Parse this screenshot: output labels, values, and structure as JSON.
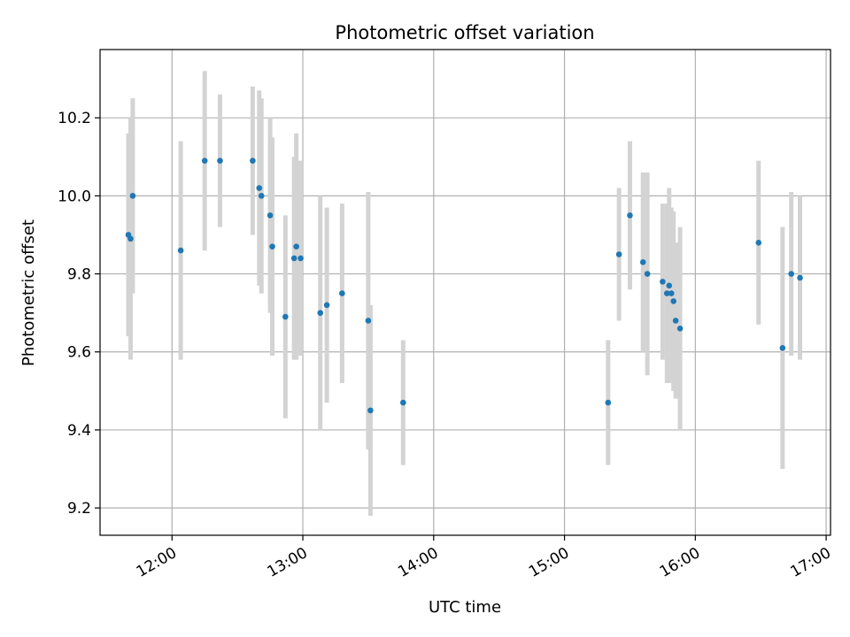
{
  "chart_data": {
    "type": "scatter",
    "title": "Photometric offset variation",
    "xlabel": "UTC time",
    "ylabel": "Photometric offset",
    "x_tick_labels": [
      "12:00",
      "13:00",
      "14:00",
      "15:00",
      "16:00",
      "17:00"
    ],
    "y_tick_labels": [
      "9.2",
      "9.4",
      "9.6",
      "9.8",
      "10.0",
      "10.2"
    ],
    "xlim": [
      "11:27",
      "17:02"
    ],
    "ylim": [
      9.13,
      10.375
    ],
    "grid": true,
    "point_color": "#1f77b4",
    "errorbar_color": "#d3d3d3",
    "series": [
      {
        "points": [
          {
            "x": "11:40",
            "y": 9.9,
            "yerr": 0.26
          },
          {
            "x": "11:41",
            "y": 9.89,
            "yerr": 0.31
          },
          {
            "x": "11:42",
            "y": 10.0,
            "yerr": 0.25
          },
          {
            "x": "12:04",
            "y": 9.86,
            "yerr": 0.28
          },
          {
            "x": "12:15",
            "y": 10.09,
            "yerr": 0.23
          },
          {
            "x": "12:22",
            "y": 10.09,
            "yerr": 0.17
          },
          {
            "x": "12:37",
            "y": 10.09,
            "yerr": 0.19
          },
          {
            "x": "12:40",
            "y": 10.02,
            "yerr": 0.25
          },
          {
            "x": "12:41",
            "y": 10.0,
            "yerr": 0.25
          },
          {
            "x": "12:45",
            "y": 9.95,
            "yerr": 0.25
          },
          {
            "x": "12:46",
            "y": 9.87,
            "yerr": 0.28
          },
          {
            "x": "12:52",
            "y": 9.69,
            "yerr": 0.26
          },
          {
            "x": "12:56",
            "y": 9.84,
            "yerr": 0.26
          },
          {
            "x": "12:57",
            "y": 9.87,
            "yerr": 0.29
          },
          {
            "x": "12:59",
            "y": 9.84,
            "yerr": 0.25
          },
          {
            "x": "13:08",
            "y": 9.7,
            "yerr": 0.3
          },
          {
            "x": "13:11",
            "y": 9.72,
            "yerr": 0.25
          },
          {
            "x": "13:18",
            "y": 9.75,
            "yerr": 0.23
          },
          {
            "x": "13:30",
            "y": 9.68,
            "yerr": 0.33
          },
          {
            "x": "13:31",
            "y": 9.45,
            "yerr": 0.27
          },
          {
            "x": "13:46",
            "y": 9.47,
            "yerr": 0.16
          },
          {
            "x": "15:20",
            "y": 9.47,
            "yerr": 0.16
          },
          {
            "x": "15:25",
            "y": 9.85,
            "yerr": 0.17
          },
          {
            "x": "15:30",
            "y": 9.95,
            "yerr": 0.19
          },
          {
            "x": "15:36",
            "y": 9.83,
            "yerr": 0.23
          },
          {
            "x": "15:38",
            "y": 9.8,
            "yerr": 0.26
          },
          {
            "x": "15:45",
            "y": 9.78,
            "yerr": 0.2
          },
          {
            "x": "15:47",
            "y": 9.75,
            "yerr": 0.23
          },
          {
            "x": "15:48",
            "y": 9.77,
            "yerr": 0.25
          },
          {
            "x": "15:49",
            "y": 9.75,
            "yerr": 0.22
          },
          {
            "x": "15:50",
            "y": 9.73,
            "yerr": 0.23
          },
          {
            "x": "15:51",
            "y": 9.68,
            "yerr": 0.2
          },
          {
            "x": "15:53",
            "y": 9.66,
            "yerr": 0.26
          },
          {
            "x": "16:29",
            "y": 9.88,
            "yerr": 0.21
          },
          {
            "x": "16:40",
            "y": 9.61,
            "yerr": 0.31
          },
          {
            "x": "16:44",
            "y": 9.8,
            "yerr": 0.21
          },
          {
            "x": "16:48",
            "y": 9.79,
            "yerr": 0.21
          }
        ]
      }
    ]
  }
}
